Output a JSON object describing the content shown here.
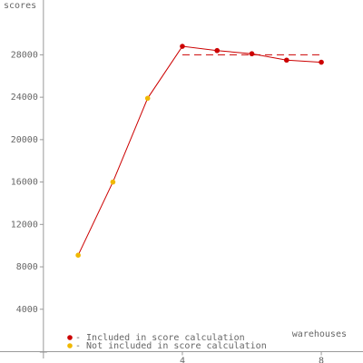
{
  "chart_data": {
    "type": "line",
    "y_label": "scores",
    "x_label": "warehouses",
    "xlim": [
      -1.25,
      9.2
    ],
    "ylim": [
      -1070,
      33170
    ],
    "xticks": [
      4,
      8
    ],
    "yticks": [
      4000,
      8000,
      12000,
      16000,
      20000,
      24000,
      28000
    ],
    "line_color": "#cc0000",
    "series": [
      {
        "name": "- Included in score calculation",
        "color": "#cc0000",
        "x": [
          4,
          5,
          6,
          7,
          8
        ],
        "values": [
          28800,
          28400,
          28100,
          27500,
          27300
        ]
      },
      {
        "name": "- Not included in score calculation",
        "color": "#f0b800",
        "x": [
          1,
          2,
          3
        ],
        "values": [
          9100,
          16000,
          23900
        ]
      }
    ],
    "reference_line": {
      "color": "#cc0000",
      "x": [
        4,
        8
      ],
      "value": 28000
    }
  }
}
